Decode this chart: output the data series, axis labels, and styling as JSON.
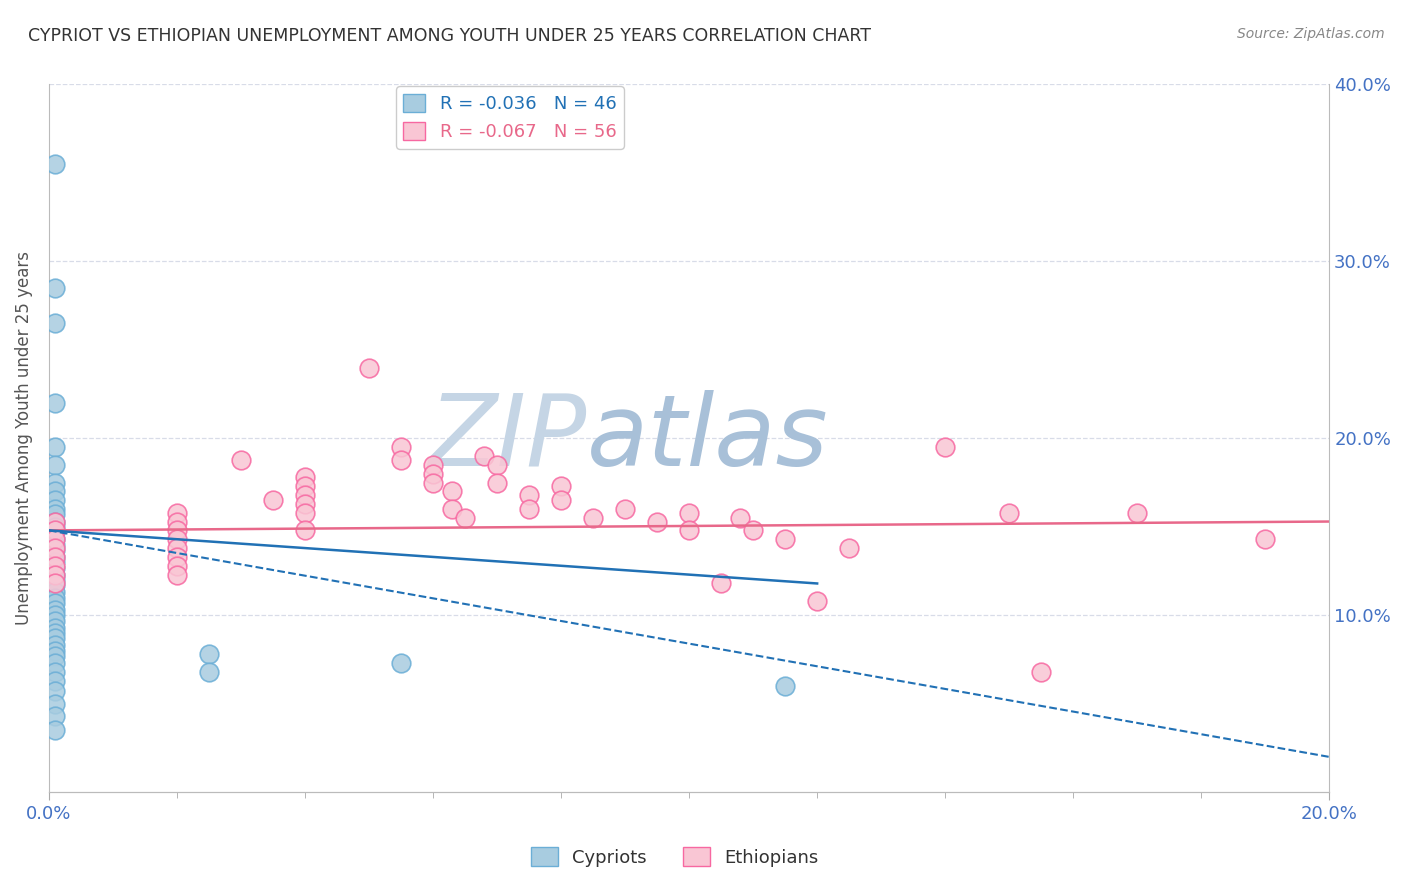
{
  "title": "CYPRIOT VS ETHIOPIAN UNEMPLOYMENT AMONG YOUTH UNDER 25 YEARS CORRELATION CHART",
  "source": "Source: ZipAtlas.com",
  "ylabel": "Unemployment Among Youth under 25 years",
  "xlim": [
    0.0,
    0.2
  ],
  "ylim": [
    0.0,
    0.4
  ],
  "legend_r_cypriot": "-0.036",
  "legend_n_cypriot": "46",
  "legend_r_ethiopian": "-0.067",
  "legend_n_ethiopian": "56",
  "cypriot_color": "#a8cce0",
  "cypriot_edge_color": "#6baed6",
  "ethiopian_color": "#f9c6d4",
  "ethiopian_edge_color": "#f768a1",
  "cypriot_line_color": "#2171b5",
  "ethiopian_line_color": "#e8688a",
  "background_color": "#ffffff",
  "watermark_zip_color": "#c8d8e8",
  "watermark_atlas_color": "#b0c8d8",
  "grid_color": "#d8dce8",
  "tick_color": "#4472c4",
  "cypriot_points": [
    [
      0.001,
      0.355
    ],
    [
      0.001,
      0.285
    ],
    [
      0.001,
      0.265
    ],
    [
      0.001,
      0.22
    ],
    [
      0.001,
      0.195
    ],
    [
      0.001,
      0.185
    ],
    [
      0.001,
      0.175
    ],
    [
      0.001,
      0.17
    ],
    [
      0.001,
      0.165
    ],
    [
      0.001,
      0.16
    ],
    [
      0.001,
      0.157
    ],
    [
      0.001,
      0.153
    ],
    [
      0.001,
      0.15
    ],
    [
      0.001,
      0.147
    ],
    [
      0.001,
      0.143
    ],
    [
      0.001,
      0.14
    ],
    [
      0.001,
      0.137
    ],
    [
      0.001,
      0.133
    ],
    [
      0.001,
      0.13
    ],
    [
      0.001,
      0.127
    ],
    [
      0.001,
      0.123
    ],
    [
      0.001,
      0.12
    ],
    [
      0.001,
      0.117
    ],
    [
      0.001,
      0.113
    ],
    [
      0.001,
      0.11
    ],
    [
      0.001,
      0.107
    ],
    [
      0.001,
      0.103
    ],
    [
      0.001,
      0.1
    ],
    [
      0.001,
      0.097
    ],
    [
      0.001,
      0.093
    ],
    [
      0.001,
      0.09
    ],
    [
      0.001,
      0.087
    ],
    [
      0.001,
      0.083
    ],
    [
      0.001,
      0.08
    ],
    [
      0.001,
      0.077
    ],
    [
      0.001,
      0.073
    ],
    [
      0.001,
      0.068
    ],
    [
      0.001,
      0.063
    ],
    [
      0.001,
      0.057
    ],
    [
      0.001,
      0.05
    ],
    [
      0.001,
      0.043
    ],
    [
      0.001,
      0.035
    ],
    [
      0.025,
      0.078
    ],
    [
      0.025,
      0.068
    ],
    [
      0.055,
      0.073
    ],
    [
      0.115,
      0.06
    ]
  ],
  "ethiopian_points": [
    [
      0.001,
      0.153
    ],
    [
      0.001,
      0.148
    ],
    [
      0.001,
      0.143
    ],
    [
      0.001,
      0.138
    ],
    [
      0.001,
      0.133
    ],
    [
      0.001,
      0.128
    ],
    [
      0.001,
      0.123
    ],
    [
      0.001,
      0.118
    ],
    [
      0.02,
      0.158
    ],
    [
      0.02,
      0.153
    ],
    [
      0.02,
      0.148
    ],
    [
      0.02,
      0.143
    ],
    [
      0.02,
      0.138
    ],
    [
      0.02,
      0.133
    ],
    [
      0.02,
      0.128
    ],
    [
      0.02,
      0.123
    ],
    [
      0.03,
      0.188
    ],
    [
      0.035,
      0.165
    ],
    [
      0.04,
      0.178
    ],
    [
      0.04,
      0.173
    ],
    [
      0.04,
      0.168
    ],
    [
      0.04,
      0.163
    ],
    [
      0.04,
      0.158
    ],
    [
      0.04,
      0.148
    ],
    [
      0.05,
      0.24
    ],
    [
      0.055,
      0.195
    ],
    [
      0.055,
      0.188
    ],
    [
      0.06,
      0.185
    ],
    [
      0.06,
      0.18
    ],
    [
      0.06,
      0.175
    ],
    [
      0.063,
      0.17
    ],
    [
      0.063,
      0.16
    ],
    [
      0.065,
      0.155
    ],
    [
      0.068,
      0.19
    ],
    [
      0.07,
      0.185
    ],
    [
      0.07,
      0.175
    ],
    [
      0.075,
      0.168
    ],
    [
      0.075,
      0.16
    ],
    [
      0.08,
      0.173
    ],
    [
      0.08,
      0.165
    ],
    [
      0.085,
      0.155
    ],
    [
      0.09,
      0.16
    ],
    [
      0.095,
      0.153
    ],
    [
      0.1,
      0.158
    ],
    [
      0.1,
      0.148
    ],
    [
      0.105,
      0.118
    ],
    [
      0.108,
      0.155
    ],
    [
      0.11,
      0.148
    ],
    [
      0.115,
      0.143
    ],
    [
      0.12,
      0.108
    ],
    [
      0.125,
      0.138
    ],
    [
      0.14,
      0.195
    ],
    [
      0.15,
      0.158
    ],
    [
      0.155,
      0.068
    ],
    [
      0.17,
      0.158
    ],
    [
      0.19,
      0.143
    ]
  ]
}
